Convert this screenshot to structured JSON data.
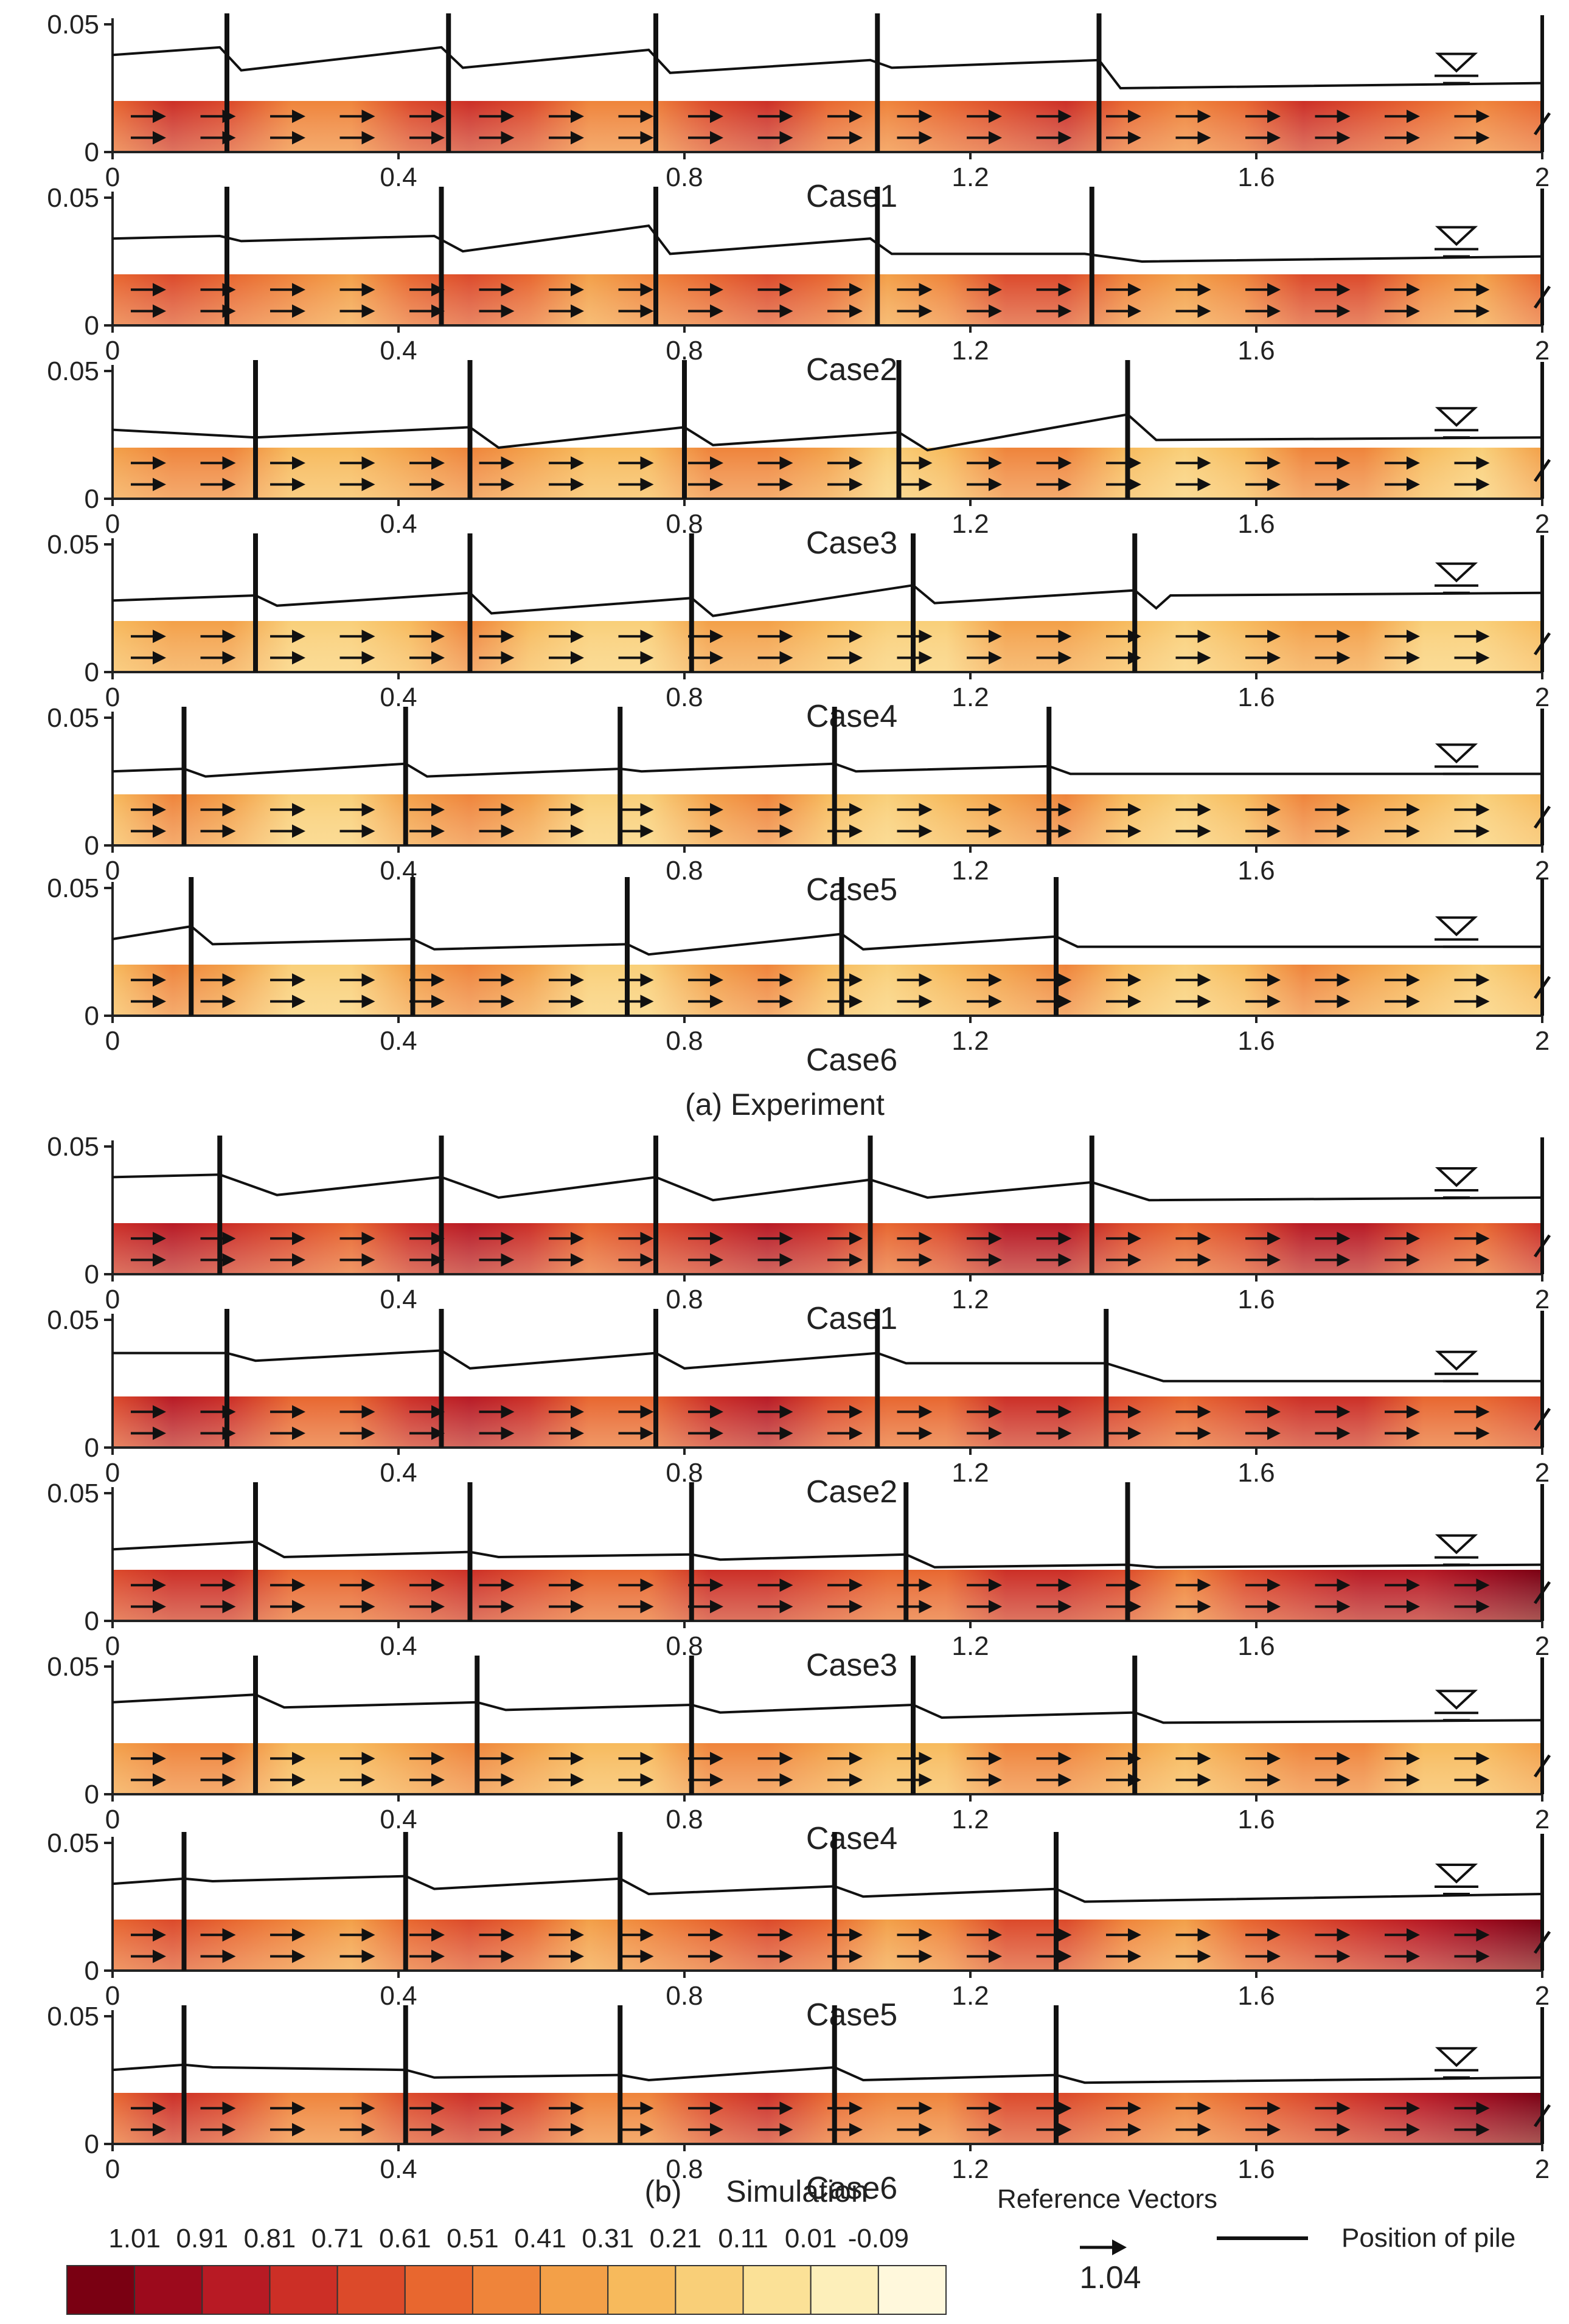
{
  "figure": {
    "section_a_label": "(a) Experiment",
    "section_b_label": "(b)",
    "section_b_title": "Simulation"
  },
  "legend": {
    "colorbar_values": [
      "1.01",
      "0.91",
      "0.81",
      "0.71",
      "0.61",
      "0.51",
      "0.41",
      "0.31",
      "0.21",
      "0.11",
      "0.01",
      "-0.09"
    ],
    "colorbar_colors": [
      "#7a0012",
      "#9c0a1c",
      "#b81a24",
      "#cc2f26",
      "#dc4a2a",
      "#e8672f",
      "#ef843a",
      "#f3a048",
      "#f7ba5c",
      "#f9cf78",
      "#fbe197",
      "#fdefba",
      "#fff8dc"
    ],
    "reference_vectors_label": "Reference Vectors",
    "reference_vector_value": "1.04",
    "pile_label": "Position of pile"
  },
  "chart_data": [
    {
      "type": "heatmap",
      "panel": "Experiment",
      "title": "Case1",
      "xlim": [
        0,
        2
      ],
      "ylim": [
        0,
        0.05
      ],
      "x_ticks": [
        "0",
        "0.4",
        "0.8",
        "1.2",
        "1.6",
        "2"
      ],
      "y_ticks": [
        "0.05",
        "0"
      ],
      "bed_level": 0.02,
      "field_intensity": 0.62,
      "piles": [
        0.16,
        0.47,
        0.76,
        1.07,
        1.38
      ],
      "water_surface": {
        "x": [
          0,
          0.15,
          0.18,
          0.46,
          0.49,
          0.75,
          0.78,
          1.06,
          1.09,
          1.38,
          1.41,
          2.0
        ],
        "y": [
          0.038,
          0.041,
          0.032,
          0.041,
          0.033,
          0.04,
          0.031,
          0.036,
          0.033,
          0.036,
          0.025,
          0.027
        ]
      }
    },
    {
      "type": "heatmap",
      "panel": "Experiment",
      "title": "Case2",
      "xlim": [
        0,
        2
      ],
      "ylim": [
        0,
        0.05
      ],
      "x_ticks": [
        "0",
        "0.4",
        "0.8",
        "1.2",
        "1.6",
        "2"
      ],
      "y_ticks": [
        "0.05",
        "0"
      ],
      "bed_level": 0.02,
      "field_intensity": 0.55,
      "piles": [
        0.16,
        0.46,
        0.76,
        1.07,
        1.37
      ],
      "water_surface": {
        "x": [
          0,
          0.15,
          0.18,
          0.45,
          0.49,
          0.75,
          0.78,
          1.06,
          1.09,
          1.36,
          1.44,
          2.0
        ],
        "y": [
          0.034,
          0.035,
          0.033,
          0.035,
          0.029,
          0.039,
          0.028,
          0.034,
          0.028,
          0.028,
          0.025,
          0.027
        ]
      }
    },
    {
      "type": "heatmap",
      "panel": "Experiment",
      "title": "Case3",
      "xlim": [
        0,
        2
      ],
      "ylim": [
        0,
        0.05
      ],
      "x_ticks": [
        "0",
        "0.4",
        "0.8",
        "1.2",
        "1.6",
        "2"
      ],
      "y_ticks": [
        "0.05",
        "0"
      ],
      "bed_level": 0.02,
      "field_intensity": 0.4,
      "piles": [
        0.2,
        0.5,
        0.8,
        1.1,
        1.42
      ],
      "water_surface": {
        "x": [
          0,
          0.2,
          0.5,
          0.54,
          0.8,
          0.84,
          1.1,
          1.14,
          1.42,
          1.46,
          2.0
        ],
        "y": [
          0.027,
          0.024,
          0.028,
          0.02,
          0.028,
          0.021,
          0.026,
          0.019,
          0.033,
          0.023,
          0.024
        ]
      }
    },
    {
      "type": "heatmap",
      "panel": "Experiment",
      "title": "Case4",
      "xlim": [
        0,
        2
      ],
      "ylim": [
        0,
        0.05
      ],
      "x_ticks": [
        "0",
        "0.4",
        "0.8",
        "1.2",
        "1.6",
        "2"
      ],
      "y_ticks": [
        "0.05",
        "0"
      ],
      "bed_level": 0.02,
      "field_intensity": 0.34,
      "piles": [
        0.2,
        0.5,
        0.81,
        1.12,
        1.43
      ],
      "water_surface": {
        "x": [
          0,
          0.2,
          0.23,
          0.5,
          0.53,
          0.81,
          0.84,
          1.12,
          1.15,
          1.43,
          1.46,
          1.48,
          2.0
        ],
        "y": [
          0.028,
          0.03,
          0.026,
          0.031,
          0.023,
          0.029,
          0.022,
          0.034,
          0.027,
          0.032,
          0.025,
          0.03,
          0.031
        ]
      }
    },
    {
      "type": "heatmap",
      "panel": "Experiment",
      "title": "Case5",
      "xlim": [
        0,
        2
      ],
      "ylim": [
        0,
        0.05
      ],
      "x_ticks": [
        "0",
        "0.4",
        "0.8",
        "1.2",
        "1.6",
        "2"
      ],
      "y_ticks": [
        "0.05",
        "0"
      ],
      "bed_level": 0.02,
      "field_intensity": 0.36,
      "piles": [
        0.1,
        0.41,
        0.71,
        1.01,
        1.31
      ],
      "water_surface": {
        "x": [
          0,
          0.1,
          0.13,
          0.41,
          0.44,
          0.71,
          0.74,
          1.01,
          1.04,
          1.31,
          1.34,
          2.0
        ],
        "y": [
          0.029,
          0.03,
          0.027,
          0.032,
          0.027,
          0.03,
          0.029,
          0.032,
          0.029,
          0.031,
          0.028,
          0.028
        ]
      }
    },
    {
      "type": "heatmap",
      "panel": "Experiment",
      "title": "Case6",
      "xlim": [
        0,
        2
      ],
      "ylim": [
        0,
        0.05
      ],
      "x_ticks": [
        "0",
        "0.4",
        "0.8",
        "1.2",
        "1.6",
        "2"
      ],
      "y_ticks": [
        "0.05",
        "0"
      ],
      "bed_level": 0.02,
      "field_intensity": 0.36,
      "piles": [
        0.11,
        0.42,
        0.72,
        1.02,
        1.32
      ],
      "water_surface": {
        "x": [
          0,
          0.11,
          0.14,
          0.42,
          0.45,
          0.72,
          0.75,
          1.02,
          1.05,
          1.32,
          1.35,
          2.0
        ],
        "y": [
          0.03,
          0.035,
          0.028,
          0.03,
          0.026,
          0.028,
          0.024,
          0.032,
          0.026,
          0.031,
          0.027,
          0.027
        ]
      }
    },
    {
      "type": "heatmap",
      "panel": "Simulation",
      "title": "Case1",
      "xlim": [
        0,
        2
      ],
      "ylim": [
        0,
        0.05
      ],
      "x_ticks": [
        "0",
        "0.4",
        "0.8",
        "1.2",
        "1.6",
        "2"
      ],
      "y_ticks": [
        "0.05",
        "0"
      ],
      "bed_level": 0.02,
      "field_intensity": 0.72,
      "piles": [
        0.15,
        0.46,
        0.76,
        1.06,
        1.37
      ],
      "water_surface": {
        "x": [
          0,
          0.15,
          0.23,
          0.46,
          0.54,
          0.76,
          0.84,
          1.06,
          1.14,
          1.37,
          1.45,
          2.0
        ],
        "y": [
          0.038,
          0.039,
          0.031,
          0.038,
          0.03,
          0.038,
          0.029,
          0.037,
          0.03,
          0.036,
          0.029,
          0.03
        ]
      }
    },
    {
      "type": "heatmap",
      "panel": "Simulation",
      "title": "Case2",
      "xlim": [
        0,
        2
      ],
      "ylim": [
        0,
        0.05
      ],
      "x_ticks": [
        "0",
        "0.4",
        "0.8",
        "1.2",
        "1.6",
        "2"
      ],
      "y_ticks": [
        "0.05",
        "0"
      ],
      "bed_level": 0.02,
      "field_intensity": 0.68,
      "piles": [
        0.16,
        0.46,
        0.76,
        1.07,
        1.39
      ],
      "water_surface": {
        "x": [
          0,
          0.16,
          0.2,
          0.46,
          0.5,
          0.76,
          0.8,
          1.07,
          1.11,
          1.39,
          1.47,
          2.0
        ],
        "y": [
          0.037,
          0.037,
          0.034,
          0.038,
          0.031,
          0.037,
          0.031,
          0.037,
          0.033,
          0.033,
          0.026,
          0.026
        ]
      }
    },
    {
      "type": "heatmap",
      "panel": "Simulation",
      "title": "Case3",
      "xlim": [
        0,
        2
      ],
      "ylim": [
        0,
        0.05
      ],
      "x_ticks": [
        "0",
        "0.4",
        "0.8",
        "1.2",
        "1.6",
        "2"
      ],
      "y_ticks": [
        "0.05",
        "0"
      ],
      "bed_level": 0.02,
      "field_intensity": 0.66,
      "dark_tail": true,
      "piles": [
        0.2,
        0.5,
        0.81,
        1.11,
        1.42
      ],
      "water_surface": {
        "x": [
          0,
          0.2,
          0.24,
          0.5,
          0.54,
          0.81,
          0.85,
          1.11,
          1.15,
          1.42,
          1.46,
          2.0
        ],
        "y": [
          0.028,
          0.031,
          0.025,
          0.027,
          0.025,
          0.026,
          0.024,
          0.026,
          0.021,
          0.022,
          0.021,
          0.022
        ]
      }
    },
    {
      "type": "heatmap",
      "panel": "Simulation",
      "title": "Case4",
      "xlim": [
        0,
        2
      ],
      "ylim": [
        0,
        0.05
      ],
      "x_ticks": [
        "0",
        "0.4",
        "0.8",
        "1.2",
        "1.6",
        "2"
      ],
      "y_ticks": [
        "0.05",
        "0"
      ],
      "bed_level": 0.02,
      "field_intensity": 0.42,
      "piles": [
        0.2,
        0.51,
        0.81,
        1.12,
        1.43
      ],
      "water_surface": {
        "x": [
          0,
          0.2,
          0.24,
          0.51,
          0.55,
          0.81,
          0.85,
          1.12,
          1.16,
          1.43,
          1.47,
          2.0
        ],
        "y": [
          0.036,
          0.039,
          0.034,
          0.036,
          0.033,
          0.035,
          0.032,
          0.035,
          0.03,
          0.032,
          0.028,
          0.029
        ]
      }
    },
    {
      "type": "heatmap",
      "panel": "Simulation",
      "title": "Case5",
      "xlim": [
        0,
        2
      ],
      "ylim": [
        0,
        0.05
      ],
      "x_ticks": [
        "0",
        "0.4",
        "0.8",
        "1.2",
        "1.6",
        "2"
      ],
      "y_ticks": [
        "0.05",
        "0"
      ],
      "bed_level": 0.02,
      "field_intensity": 0.55,
      "dark_tail": true,
      "piles": [
        0.1,
        0.41,
        0.71,
        1.01,
        1.32
      ],
      "water_surface": {
        "x": [
          0,
          0.1,
          0.14,
          0.41,
          0.45,
          0.71,
          0.75,
          1.01,
          1.05,
          1.32,
          1.36,
          2.0
        ],
        "y": [
          0.034,
          0.036,
          0.035,
          0.037,
          0.032,
          0.036,
          0.03,
          0.033,
          0.029,
          0.032,
          0.027,
          0.03
        ]
      }
    },
    {
      "type": "heatmap",
      "panel": "Simulation",
      "title": "Case6",
      "xlim": [
        0,
        2
      ],
      "ylim": [
        0,
        0.05
      ],
      "x_ticks": [
        "0",
        "0.4",
        "0.8",
        "1.2",
        "1.6",
        "2"
      ],
      "y_ticks": [
        "0.05",
        "0"
      ],
      "bed_level": 0.02,
      "field_intensity": 0.6,
      "dark_tail": true,
      "piles": [
        0.1,
        0.41,
        0.71,
        1.01,
        1.32
      ],
      "water_surface": {
        "x": [
          0,
          0.1,
          0.14,
          0.41,
          0.45,
          0.71,
          0.75,
          1.01,
          1.05,
          1.32,
          1.36,
          2.0
        ],
        "y": [
          0.029,
          0.031,
          0.03,
          0.029,
          0.026,
          0.027,
          0.025,
          0.03,
          0.025,
          0.027,
          0.024,
          0.026
        ]
      }
    }
  ]
}
